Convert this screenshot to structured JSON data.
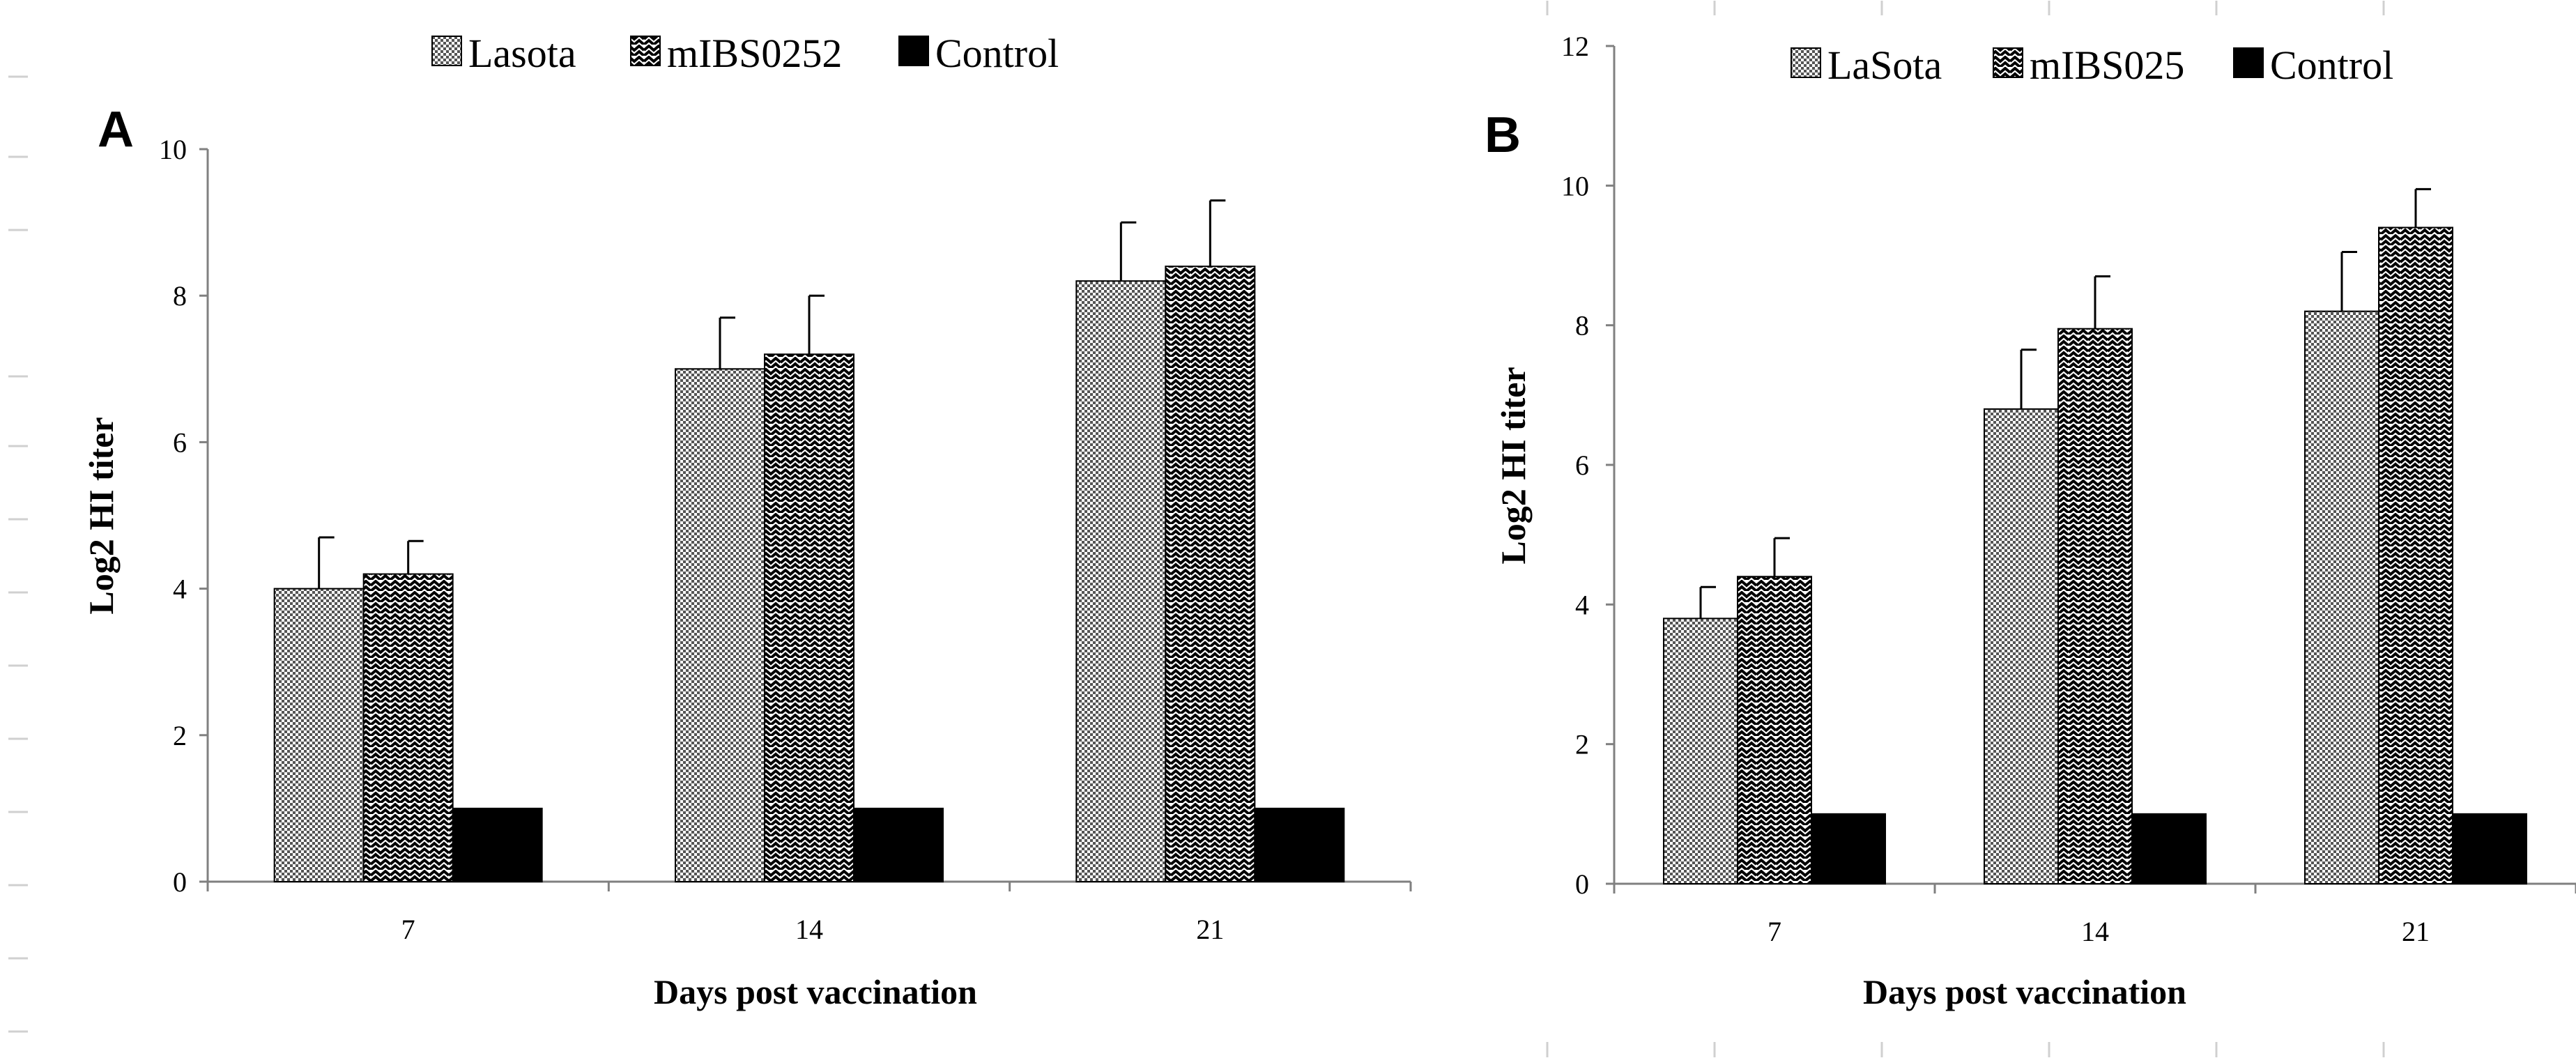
{
  "colors": {
    "bar_stroke": "#000000",
    "control_fill": "#000000",
    "pattern_fg": "#000000",
    "axis": "#808080",
    "background": "#ffffff"
  },
  "chart_data": [
    {
      "type": "bar",
      "panel_label": "A",
      "title": "",
      "xlabel": "Days post vaccination",
      "ylabel": "Log2 HI titer",
      "categories": [
        "7",
        "14",
        "21"
      ],
      "ylim": [
        0,
        10
      ],
      "yticks": [
        0,
        2,
        4,
        6,
        8,
        10
      ],
      "grid": false,
      "legend_position": "top",
      "series": [
        {
          "name": "Lasota",
          "pattern": "dots",
          "values": [
            4.0,
            7.0,
            8.2
          ],
          "errors": [
            0.7,
            0.7,
            0.8
          ]
        },
        {
          "name": "mIBS0252",
          "pattern": "waves",
          "values": [
            4.2,
            7.2,
            8.4
          ],
          "errors": [
            0.45,
            0.8,
            0.9
          ]
        },
        {
          "name": "Control",
          "pattern": "solid",
          "values": [
            1.0,
            1.0,
            1.0
          ],
          "errors": [
            null,
            null,
            null
          ]
        }
      ]
    },
    {
      "type": "bar",
      "panel_label": "B",
      "title": "",
      "xlabel": "Days post vaccination",
      "ylabel": "Log2 HI titer",
      "categories": [
        "7",
        "14",
        "21"
      ],
      "ylim": [
        0,
        12
      ],
      "yticks": [
        0,
        2,
        4,
        6,
        8,
        10,
        12
      ],
      "grid": false,
      "legend_position": "top",
      "series": [
        {
          "name": "LaSota",
          "pattern": "dots",
          "values": [
            3.8,
            6.8,
            8.2
          ],
          "errors": [
            0.45,
            0.85,
            0.85
          ]
        },
        {
          "name": "mIBS025",
          "pattern": "waves",
          "values": [
            4.4,
            7.95,
            9.4
          ],
          "errors": [
            0.55,
            0.75,
            0.55
          ]
        },
        {
          "name": "Control",
          "pattern": "solid",
          "values": [
            1.0,
            1.0,
            1.0
          ],
          "errors": [
            null,
            null,
            null
          ]
        }
      ]
    }
  ]
}
